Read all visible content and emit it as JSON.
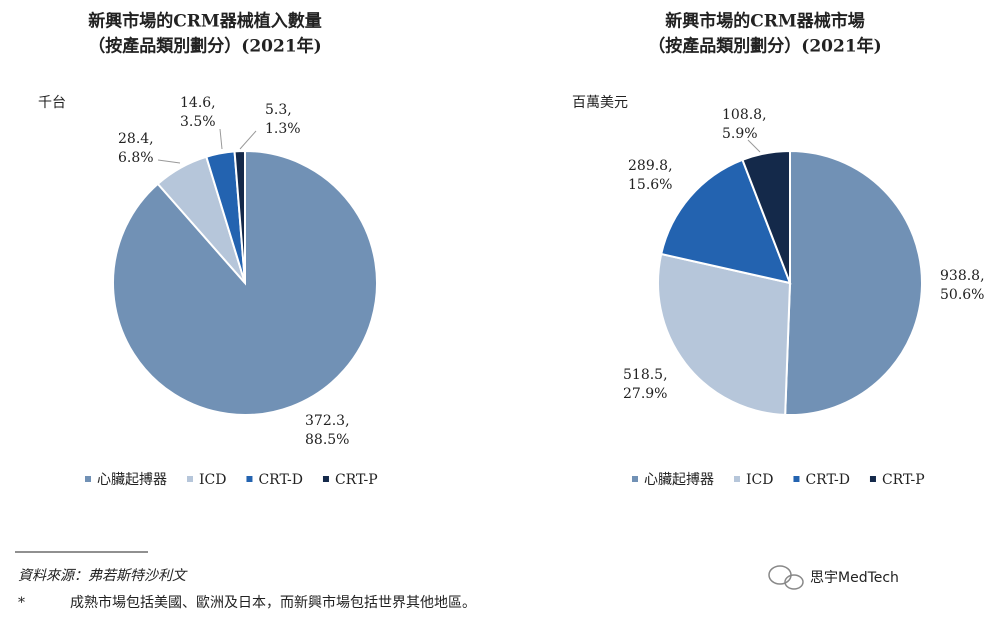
{
  "chart_data": [
    {
      "type": "pie",
      "title": [
        "新興市場的CRM器械植入數量",
        "（按產品類別劃分）(2021年)"
      ],
      "unit": "千台",
      "categories": [
        "心臟起搏器",
        "ICD",
        "CRT-D",
        "CRT-P"
      ],
      "values": [
        372.3,
        28.4,
        14.6,
        5.3
      ],
      "value_labels": [
        "372.3,",
        "28.4,",
        "14.6,",
        "5.3,"
      ],
      "shares": [
        88.5,
        6.8,
        3.5,
        1.3
      ],
      "share_labels": [
        "88.5%",
        "6.8%",
        "3.5%",
        "1.3%"
      ],
      "colors": [
        "#7191b5",
        "#b6c6da",
        "#2363b0",
        "#14294a"
      ]
    },
    {
      "type": "pie",
      "title": [
        "新興市場的CRM器械市場",
        "（按產品類別劃分）(2021年)"
      ],
      "unit": "百萬美元",
      "categories": [
        "心臟起搏器",
        "ICD",
        "CRT-D",
        "CRT-P"
      ],
      "values": [
        938.8,
        518.5,
        289.8,
        108.8
      ],
      "value_labels": [
        "938.8,",
        "518.5,",
        "289.8,",
        "108.8,"
      ],
      "shares": [
        50.6,
        27.9,
        15.6,
        5.9
      ],
      "share_labels": [
        "50.6%",
        "27.9%",
        "15.6%",
        "5.9%"
      ],
      "colors": [
        "#7191b5",
        "#b6c6da",
        "#2363b0",
        "#14294a"
      ]
    }
  ],
  "notes": {
    "source": "資料來源：弗若斯特沙利文",
    "marker": "*",
    "text": "成熟市場包括美國、歐洲及日本，而新興市場包括世界其他地區。"
  },
  "watermark": "思宇MedTech"
}
